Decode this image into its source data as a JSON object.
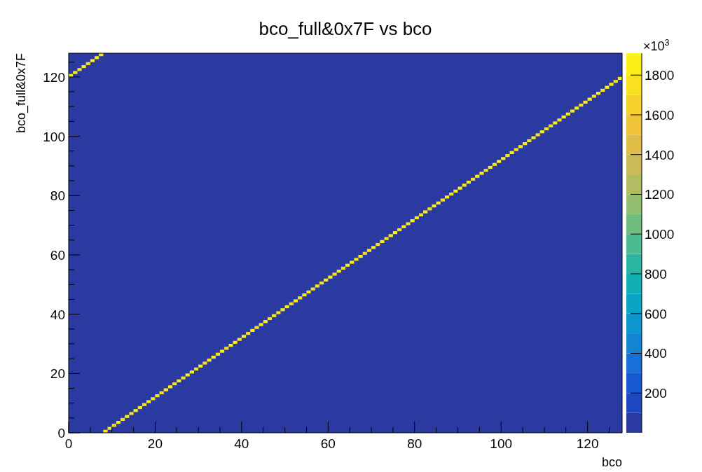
{
  "chart_data": {
    "type": "scatter",
    "title": "bco_full&0x7F vs bco",
    "xlabel": "bco",
    "ylabel": "bco_full&0x7F",
    "clabel": "×10$^{3}$",
    "marker": "square",
    "x": [
      0.5,
      1.5,
      2.5,
      3.5,
      4.5,
      5.5,
      6.5,
      7.5,
      8.5,
      9.5,
      10.5,
      11.5,
      12.5,
      13.5,
      14.5,
      15.5,
      16.5,
      17.5,
      18.5,
      19.5,
      20.5,
      21.5,
      22.5,
      23.5,
      24.5,
      25.5,
      26.5,
      27.5,
      28.5,
      29.5,
      30.5,
      31.5,
      32.5,
      33.5,
      34.5,
      35.5,
      36.5,
      37.5,
      38.5,
      39.5,
      40.5,
      41.5,
      42.5,
      43.5,
      44.5,
      45.5,
      46.5,
      47.5,
      48.5,
      49.5,
      50.5,
      51.5,
      52.5,
      53.5,
      54.5,
      55.5,
      56.5,
      57.5,
      58.5,
      59.5,
      60.5,
      61.5,
      62.5,
      63.5,
      64.5,
      65.5,
      66.5,
      67.5,
      68.5,
      69.5,
      70.5,
      71.5,
      72.5,
      73.5,
      74.5,
      75.5,
      76.5,
      77.5,
      78.5,
      79.5,
      80.5,
      81.5,
      82.5,
      83.5,
      84.5,
      85.5,
      86.5,
      87.5,
      88.5,
      89.5,
      90.5,
      91.5,
      92.5,
      93.5,
      94.5,
      95.5,
      96.5,
      97.5,
      98.5,
      99.5,
      100.5,
      101.5,
      102.5,
      103.5,
      104.5,
      105.5,
      106.5,
      107.5,
      108.5,
      109.5,
      110.5,
      111.5,
      112.5,
      113.5,
      114.5,
      115.5,
      116.5,
      117.5,
      118.5,
      119.5,
      120.5,
      121.5,
      122.5,
      123.5,
      124.5,
      125.5,
      126.5,
      127.5
    ],
    "values": [
      120.5,
      121.5,
      122.5,
      123.5,
      124.5,
      125.5,
      126.5,
      127.5,
      0.5,
      1.5,
      2.5,
      3.5,
      4.5,
      5.5,
      6.5,
      7.5,
      8.5,
      9.5,
      10.5,
      11.5,
      12.5,
      13.5,
      14.5,
      15.5,
      16.5,
      17.5,
      18.5,
      19.5,
      20.5,
      21.5,
      22.5,
      23.5,
      24.5,
      25.5,
      26.5,
      27.5,
      28.5,
      29.5,
      30.5,
      31.5,
      32.5,
      33.5,
      34.5,
      35.5,
      36.5,
      37.5,
      38.5,
      39.5,
      40.5,
      41.5,
      42.5,
      43.5,
      44.5,
      45.5,
      46.5,
      47.5,
      48.5,
      49.5,
      50.5,
      51.5,
      52.5,
      53.5,
      54.5,
      55.5,
      56.5,
      57.5,
      58.5,
      59.5,
      60.5,
      61.5,
      62.5,
      63.5,
      64.5,
      65.5,
      66.5,
      67.5,
      68.5,
      69.5,
      70.5,
      71.5,
      72.5,
      73.5,
      74.5,
      75.5,
      76.5,
      77.5,
      78.5,
      79.5,
      80.5,
      81.5,
      82.5,
      83.5,
      84.5,
      85.5,
      86.5,
      87.5,
      88.5,
      89.5,
      90.5,
      91.5,
      92.5,
      93.5,
      94.5,
      95.5,
      96.5,
      97.5,
      98.5,
      99.5,
      100.5,
      101.5,
      102.5,
      103.5,
      104.5,
      105.5,
      106.5,
      107.5,
      108.5,
      109.5,
      110.5,
      111.5,
      112.5,
      113.5,
      114.5,
      115.5,
      116.5,
      117.5,
      118.5,
      119.5
    ],
    "cvalues": [
      1800,
      1800,
      1700,
      1800,
      1700,
      1800,
      1800,
      1800,
      1800,
      1700,
      1700,
      1800,
      1700,
      1800,
      1700,
      1800,
      1800,
      1700,
      1800,
      1700,
      1800,
      1700,
      1800,
      1800,
      1700,
      1800,
      1700,
      1800,
      1800,
      1700,
      1800,
      1700,
      1800,
      1800,
      1700,
      1800,
      1700,
      1800,
      1800,
      1700,
      1800,
      1700,
      1800,
      1700,
      1800,
      1800,
      1700,
      1800,
      1700,
      1800,
      1800,
      1700,
      1800,
      1700,
      1800,
      1800,
      1700,
      1800,
      1700,
      1800,
      1800,
      1700,
      1800,
      1700,
      1800,
      1800,
      1700,
      1800,
      1600,
      1800,
      1800,
      1700,
      1800,
      1700,
      1800,
      1800,
      1700,
      1800,
      1700,
      1800,
      1800,
      1700,
      1800,
      1700,
      1800,
      1800,
      1700,
      1800,
      1700,
      1800,
      1800,
      1700,
      1800,
      1700,
      1800,
      1800,
      1700,
      1800,
      1700,
      1800,
      1800,
      1700,
      1800,
      1700,
      1800,
      1800,
      1700,
      1800,
      1700,
      1800,
      1800,
      1700,
      1800,
      1700,
      1800,
      1800,
      1700,
      1800,
      1700,
      1800,
      1800,
      1700,
      1800,
      1700,
      1800,
      1800,
      1700,
      1800
    ],
    "xlim": [
      0,
      128
    ],
    "ylim": [
      0,
      128
    ],
    "xticks": [
      0,
      {
        "value": 5,
        "label": null
      },
      {
        "value": 10,
        "label": null
      },
      {
        "value": 15,
        "label": null
      },
      20,
      {
        "value": 25,
        "label": null
      },
      {
        "value": 30,
        "label": null
      },
      {
        "value": 35,
        "label": null
      },
      40,
      {
        "value": 45,
        "label": null
      },
      {
        "value": 50,
        "label": null
      },
      {
        "value": 55,
        "label": null
      },
      60,
      {
        "value": 65,
        "label": null
      },
      {
        "value": 70,
        "label": null
      },
      {
        "value": 75,
        "label": null
      },
      80,
      {
        "value": 85,
        "label": null
      },
      {
        "value": 90,
        "label": null
      },
      {
        "value": 95,
        "label": null
      },
      100,
      {
        "value": 105,
        "label": null
      },
      {
        "value": 110,
        "label": null
      },
      {
        "value": 115,
        "label": null
      },
      120,
      {
        "value": 125,
        "label": null
      }
    ],
    "yticks": [
      0,
      {
        "value": 5,
        "label": null
      },
      {
        "value": 10,
        "label": null
      },
      {
        "value": 15,
        "label": null
      },
      20,
      {
        "value": 25,
        "label": null
      },
      {
        "value": 30,
        "label": null
      },
      {
        "value": 35,
        "label": null
      },
      40,
      {
        "value": 45,
        "label": null
      },
      {
        "value": 50,
        "label": null
      },
      {
        "value": 55,
        "label": null
      },
      60,
      {
        "value": 65,
        "label": null
      },
      {
        "value": 70,
        "label": null
      },
      {
        "value": 75,
        "label": null
      },
      80,
      {
        "value": 85,
        "label": null
      },
      {
        "value": 90,
        "label": null
      },
      {
        "value": 95,
        "label": null
      },
      100,
      {
        "value": 105,
        "label": null
      },
      {
        "value": 110,
        "label": null
      },
      {
        "value": 115,
        "label": null
      },
      120,
      {
        "value": 125,
        "label": null
      }
    ],
    "clim": [
      0,
      1910
    ],
    "cticks": [
      200,
      400,
      600,
      800,
      1000,
      1200,
      1400,
      1600,
      1800
    ]
  }
}
